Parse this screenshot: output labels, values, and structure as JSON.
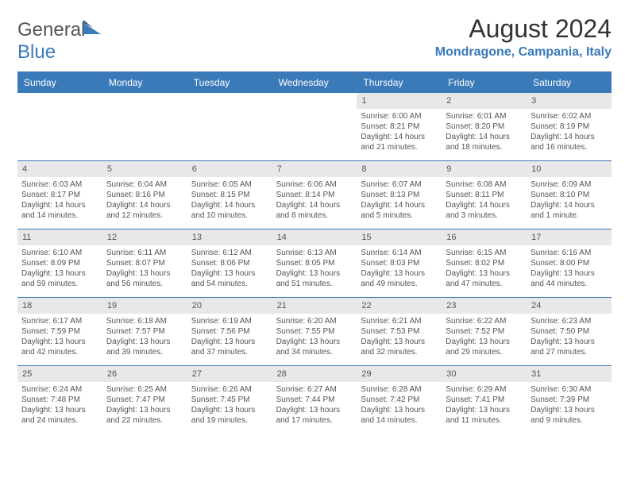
{
  "logo": {
    "textGeneral": "General",
    "textBlue": "Blue"
  },
  "title": "August 2024",
  "location": "Mondragone, Campania, Italy",
  "weekdays": [
    "Sunday",
    "Monday",
    "Tuesday",
    "Wednesday",
    "Thursday",
    "Friday",
    "Saturday"
  ],
  "colors": {
    "accent": "#3a7ab8",
    "header_bg": "#3a7ab8",
    "header_text": "#ffffff",
    "daynum_bg": "#e8e8e8",
    "text": "#555555",
    "background": "#ffffff"
  },
  "calendar": {
    "type": "table",
    "columns": 7,
    "rows": 5,
    "leading_blank": 4
  },
  "days": [
    {
      "n": "1",
      "sunrise": "Sunrise: 6:00 AM",
      "sunset": "Sunset: 8:21 PM",
      "day1": "Daylight: 14 hours",
      "day2": "and 21 minutes."
    },
    {
      "n": "2",
      "sunrise": "Sunrise: 6:01 AM",
      "sunset": "Sunset: 8:20 PM",
      "day1": "Daylight: 14 hours",
      "day2": "and 18 minutes."
    },
    {
      "n": "3",
      "sunrise": "Sunrise: 6:02 AM",
      "sunset": "Sunset: 8:19 PM",
      "day1": "Daylight: 14 hours",
      "day2": "and 16 minutes."
    },
    {
      "n": "4",
      "sunrise": "Sunrise: 6:03 AM",
      "sunset": "Sunset: 8:17 PM",
      "day1": "Daylight: 14 hours",
      "day2": "and 14 minutes."
    },
    {
      "n": "5",
      "sunrise": "Sunrise: 6:04 AM",
      "sunset": "Sunset: 8:16 PM",
      "day1": "Daylight: 14 hours",
      "day2": "and 12 minutes."
    },
    {
      "n": "6",
      "sunrise": "Sunrise: 6:05 AM",
      "sunset": "Sunset: 8:15 PM",
      "day1": "Daylight: 14 hours",
      "day2": "and 10 minutes."
    },
    {
      "n": "7",
      "sunrise": "Sunrise: 6:06 AM",
      "sunset": "Sunset: 8:14 PM",
      "day1": "Daylight: 14 hours",
      "day2": "and 8 minutes."
    },
    {
      "n": "8",
      "sunrise": "Sunrise: 6:07 AM",
      "sunset": "Sunset: 8:13 PM",
      "day1": "Daylight: 14 hours",
      "day2": "and 5 minutes."
    },
    {
      "n": "9",
      "sunrise": "Sunrise: 6:08 AM",
      "sunset": "Sunset: 8:11 PM",
      "day1": "Daylight: 14 hours",
      "day2": "and 3 minutes."
    },
    {
      "n": "10",
      "sunrise": "Sunrise: 6:09 AM",
      "sunset": "Sunset: 8:10 PM",
      "day1": "Daylight: 14 hours",
      "day2": "and 1 minute."
    },
    {
      "n": "11",
      "sunrise": "Sunrise: 6:10 AM",
      "sunset": "Sunset: 8:09 PM",
      "day1": "Daylight: 13 hours",
      "day2": "and 59 minutes."
    },
    {
      "n": "12",
      "sunrise": "Sunrise: 6:11 AM",
      "sunset": "Sunset: 8:07 PM",
      "day1": "Daylight: 13 hours",
      "day2": "and 56 minutes."
    },
    {
      "n": "13",
      "sunrise": "Sunrise: 6:12 AM",
      "sunset": "Sunset: 8:06 PM",
      "day1": "Daylight: 13 hours",
      "day2": "and 54 minutes."
    },
    {
      "n": "14",
      "sunrise": "Sunrise: 6:13 AM",
      "sunset": "Sunset: 8:05 PM",
      "day1": "Daylight: 13 hours",
      "day2": "and 51 minutes."
    },
    {
      "n": "15",
      "sunrise": "Sunrise: 6:14 AM",
      "sunset": "Sunset: 8:03 PM",
      "day1": "Daylight: 13 hours",
      "day2": "and 49 minutes."
    },
    {
      "n": "16",
      "sunrise": "Sunrise: 6:15 AM",
      "sunset": "Sunset: 8:02 PM",
      "day1": "Daylight: 13 hours",
      "day2": "and 47 minutes."
    },
    {
      "n": "17",
      "sunrise": "Sunrise: 6:16 AM",
      "sunset": "Sunset: 8:00 PM",
      "day1": "Daylight: 13 hours",
      "day2": "and 44 minutes."
    },
    {
      "n": "18",
      "sunrise": "Sunrise: 6:17 AM",
      "sunset": "Sunset: 7:59 PM",
      "day1": "Daylight: 13 hours",
      "day2": "and 42 minutes."
    },
    {
      "n": "19",
      "sunrise": "Sunrise: 6:18 AM",
      "sunset": "Sunset: 7:57 PM",
      "day1": "Daylight: 13 hours",
      "day2": "and 39 minutes."
    },
    {
      "n": "20",
      "sunrise": "Sunrise: 6:19 AM",
      "sunset": "Sunset: 7:56 PM",
      "day1": "Daylight: 13 hours",
      "day2": "and 37 minutes."
    },
    {
      "n": "21",
      "sunrise": "Sunrise: 6:20 AM",
      "sunset": "Sunset: 7:55 PM",
      "day1": "Daylight: 13 hours",
      "day2": "and 34 minutes."
    },
    {
      "n": "22",
      "sunrise": "Sunrise: 6:21 AM",
      "sunset": "Sunset: 7:53 PM",
      "day1": "Daylight: 13 hours",
      "day2": "and 32 minutes."
    },
    {
      "n": "23",
      "sunrise": "Sunrise: 6:22 AM",
      "sunset": "Sunset: 7:52 PM",
      "day1": "Daylight: 13 hours",
      "day2": "and 29 minutes."
    },
    {
      "n": "24",
      "sunrise": "Sunrise: 6:23 AM",
      "sunset": "Sunset: 7:50 PM",
      "day1": "Daylight: 13 hours",
      "day2": "and 27 minutes."
    },
    {
      "n": "25",
      "sunrise": "Sunrise: 6:24 AM",
      "sunset": "Sunset: 7:48 PM",
      "day1": "Daylight: 13 hours",
      "day2": "and 24 minutes."
    },
    {
      "n": "26",
      "sunrise": "Sunrise: 6:25 AM",
      "sunset": "Sunset: 7:47 PM",
      "day1": "Daylight: 13 hours",
      "day2": "and 22 minutes."
    },
    {
      "n": "27",
      "sunrise": "Sunrise: 6:26 AM",
      "sunset": "Sunset: 7:45 PM",
      "day1": "Daylight: 13 hours",
      "day2": "and 19 minutes."
    },
    {
      "n": "28",
      "sunrise": "Sunrise: 6:27 AM",
      "sunset": "Sunset: 7:44 PM",
      "day1": "Daylight: 13 hours",
      "day2": "and 17 minutes."
    },
    {
      "n": "29",
      "sunrise": "Sunrise: 6:28 AM",
      "sunset": "Sunset: 7:42 PM",
      "day1": "Daylight: 13 hours",
      "day2": "and 14 minutes."
    },
    {
      "n": "30",
      "sunrise": "Sunrise: 6:29 AM",
      "sunset": "Sunset: 7:41 PM",
      "day1": "Daylight: 13 hours",
      "day2": "and 11 minutes."
    },
    {
      "n": "31",
      "sunrise": "Sunrise: 6:30 AM",
      "sunset": "Sunset: 7:39 PM",
      "day1": "Daylight: 13 hours",
      "day2": "and 9 minutes."
    }
  ]
}
